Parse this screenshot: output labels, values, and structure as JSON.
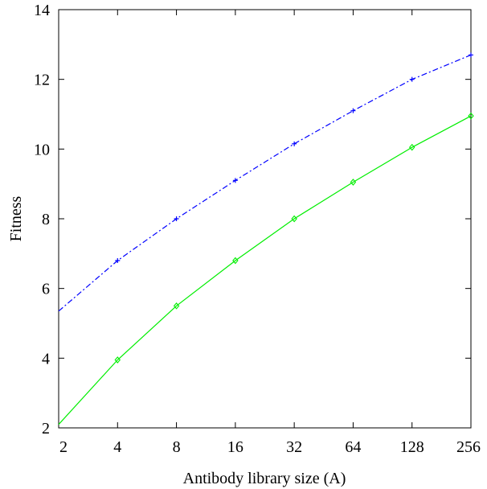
{
  "chart_data": {
    "type": "line",
    "xlabel": "Antibody library size (A)",
    "ylabel": "Fitness",
    "x_scale": "log2",
    "xlim": [
      2,
      256
    ],
    "ylim": [
      2,
      14
    ],
    "x_ticks": [
      2,
      4,
      8,
      16,
      32,
      64,
      128,
      256
    ],
    "x_tick_labels": [
      "2",
      "4",
      "8",
      "16",
      "32",
      "64",
      "128",
      "256"
    ],
    "y_ticks": [
      2,
      4,
      6,
      8,
      10,
      12,
      14
    ],
    "y_tick_labels": [
      "2",
      "4",
      "6",
      "8",
      "10",
      "12",
      "14"
    ],
    "grid": false,
    "series": [
      {
        "color": "#0000ff",
        "line_style": "dash-dot",
        "marker": "plus",
        "x": [
          4,
          8,
          16,
          32,
          64,
          128,
          256
        ],
        "y": [
          6.8,
          8.0,
          9.1,
          10.15,
          11.1,
          12.0,
          12.7
        ],
        "line_x": [
          2,
          4,
          8,
          16,
          32,
          64,
          128,
          256
        ],
        "line_y": [
          5.35,
          6.8,
          8.0,
          9.1,
          10.15,
          11.1,
          12.0,
          12.7
        ]
      },
      {
        "color": "#00ee00",
        "line_style": "solid",
        "marker": "diamond",
        "x": [
          4,
          8,
          16,
          32,
          64,
          128,
          256
        ],
        "y": [
          3.95,
          5.5,
          6.8,
          8.0,
          9.05,
          10.05,
          10.95
        ],
        "line_x": [
          2,
          4,
          8,
          16,
          32,
          64,
          128,
          256
        ],
        "line_y": [
          2.1,
          3.95,
          5.5,
          6.8,
          8.0,
          9.05,
          10.05,
          10.95
        ]
      }
    ]
  }
}
